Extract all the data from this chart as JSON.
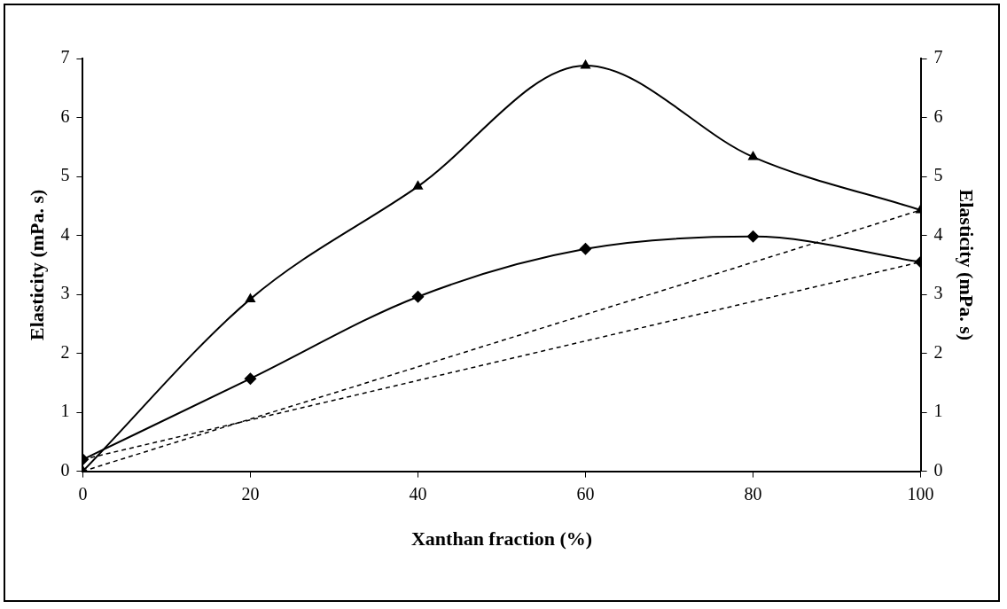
{
  "chart_data": {
    "type": "line",
    "xlabel": "Xanthan fraction (%)",
    "ylabel": "Elasticity (mPa. s)",
    "y2label": "Elasticity (mPa. s)",
    "xlim": [
      0,
      100
    ],
    "xticks": [
      0,
      20,
      40,
      60,
      80,
      100
    ],
    "ylim": [
      0,
      7
    ],
    "yticks": [
      0,
      1,
      2,
      3,
      4,
      5,
      6,
      7
    ],
    "y2lim": [
      0,
      7
    ],
    "y2ticks": [
      0,
      1,
      2,
      3,
      4,
      5,
      6,
      7
    ],
    "grid": false,
    "legend": false,
    "series": [
      {
        "color": "#000000",
        "marker": "triangle",
        "line_style": "solid",
        "x": [
          0,
          20,
          40,
          60,
          80,
          100
        ],
        "values": [
          0,
          2.92,
          4.83,
          6.88,
          5.33,
          4.43
        ]
      },
      {
        "color": "#000000",
        "marker": "diamond",
        "line_style": "solid",
        "x": [
          0,
          20,
          40,
          60,
          80,
          100
        ],
        "values": [
          0.2,
          1.57,
          2.96,
          3.77,
          3.98,
          3.55
        ]
      },
      {
        "color": "#000000",
        "marker": "none",
        "line_style": "dashed",
        "x": [
          0,
          100
        ],
        "values": [
          0,
          4.43
        ]
      },
      {
        "color": "#000000",
        "marker": "none",
        "line_style": "dashed",
        "x": [
          0,
          100
        ],
        "values": [
          0.2,
          3.55
        ]
      }
    ]
  }
}
